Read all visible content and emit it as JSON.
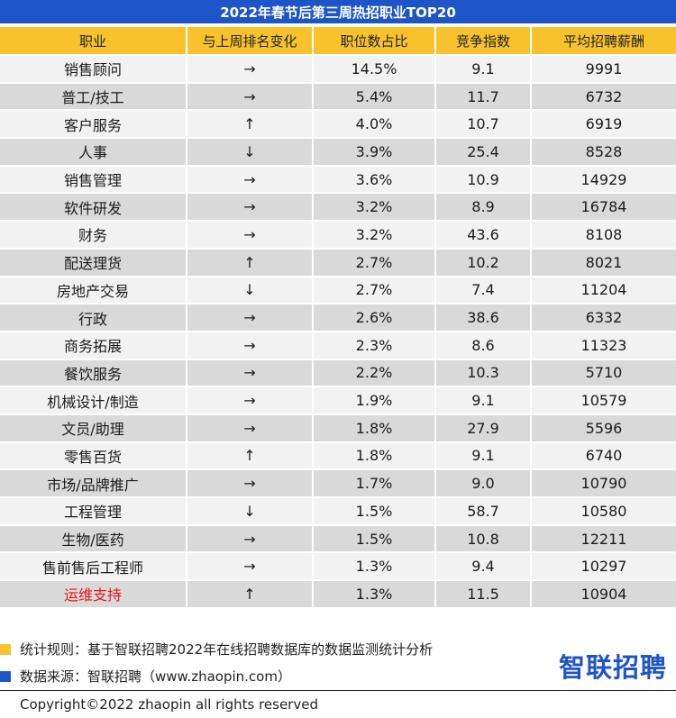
{
  "title": "2022年春节后第三周热招职业TOP20",
  "columns": [
    "职业",
    "与上周排名变化",
    "职位数占比",
    "竞争指数",
    "平均招聘薪酬"
  ],
  "rows": [
    {
      "job": "销售顾问",
      "change": "→",
      "share": "14.5%",
      "competition": "9.1",
      "salary": "9991"
    },
    {
      "job": "普工/技工",
      "change": "→",
      "share": "5.4%",
      "competition": "11.7",
      "salary": "6732"
    },
    {
      "job": "客户服务",
      "change": "↑",
      "share": "4.0%",
      "competition": "10.7",
      "salary": "6919"
    },
    {
      "job": "人事",
      "change": "↓",
      "share": "3.9%",
      "competition": "25.4",
      "salary": "8528"
    },
    {
      "job": "销售管理",
      "change": "→",
      "share": "3.6%",
      "competition": "10.9",
      "salary": "14929"
    },
    {
      "job": "软件研发",
      "change": "→",
      "share": "3.2%",
      "competition": "8.9",
      "salary": "16784"
    },
    {
      "job": "财务",
      "change": "→",
      "share": "3.2%",
      "competition": "43.6",
      "salary": "8108"
    },
    {
      "job": "配送理货",
      "change": "↑",
      "share": "2.7%",
      "competition": "10.2",
      "salary": "8021"
    },
    {
      "job": "房地产交易",
      "change": "↓",
      "share": "2.7%",
      "competition": "7.4",
      "salary": "11204"
    },
    {
      "job": "行政",
      "change": "→",
      "share": "2.6%",
      "competition": "38.6",
      "salary": "6332"
    },
    {
      "job": "商务拓展",
      "change": "→",
      "share": "2.3%",
      "competition": "8.6",
      "salary": "11323"
    },
    {
      "job": "餐饮服务",
      "change": "→",
      "share": "2.2%",
      "competition": "10.3",
      "salary": "5710"
    },
    {
      "job": "机械设计/制造",
      "change": "→",
      "share": "1.9%",
      "competition": "9.1",
      "salary": "10579"
    },
    {
      "job": "文员/助理",
      "change": "→",
      "share": "1.8%",
      "competition": "27.9",
      "salary": "5596"
    },
    {
      "job": "零售百货",
      "change": "↑",
      "share": "1.8%",
      "competition": "9.1",
      "salary": "6740"
    },
    {
      "job": "市场/品牌推广",
      "change": "→",
      "share": "1.7%",
      "competition": "9.0",
      "salary": "10790"
    },
    {
      "job": "工程管理",
      "change": "↓",
      "share": "1.5%",
      "competition": "58.7",
      "salary": "10580"
    },
    {
      "job": "生物/医药",
      "change": "→",
      "share": "1.5%",
      "competition": "10.8",
      "salary": "12211"
    },
    {
      "job": "售前售后工程师",
      "change": "→",
      "share": "1.3%",
      "competition": "9.4",
      "salary": "10297"
    },
    {
      "job": "运维支持",
      "change": "↑",
      "share": "1.3%",
      "competition": "11.5",
      "salary": "10904",
      "highlight": true
    }
  ],
  "notes": {
    "rule": "统计规则：基于智联招聘2022年在线招聘数据库的数据监测统计分析",
    "source": "数据来源：智联招聘（www.zhaopin.com）"
  },
  "logo_text": "智联招聘",
  "copyright": "Copyright©2022 zhaopin all rights reserved",
  "colors": {
    "title_bg": "#1d55c8",
    "header_bg": "#f7c22c",
    "row_light": "#f2f2f2",
    "row_dark": "#d9d9d9",
    "highlight_text": "#e8141b",
    "logo": "#1d55c8"
  }
}
